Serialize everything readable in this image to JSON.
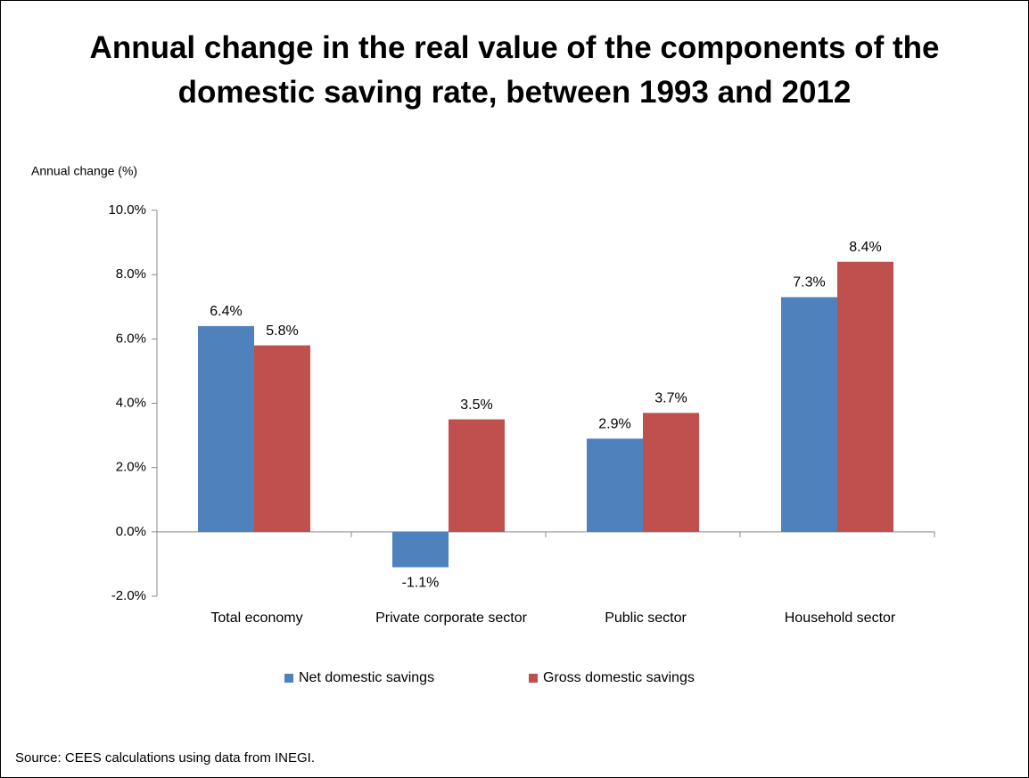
{
  "chart_data": {
    "type": "bar",
    "title": "Annual change in the real value of the components of the domestic saving rate, between 1993 and 2012",
    "y_label": "Annual change (%)",
    "categories": [
      "Total economy",
      "Private corporate sector",
      "Public sector",
      "Household sector"
    ],
    "series": [
      {
        "name": "Net domestic savings",
        "color": "#4f81bd",
        "values": [
          6.4,
          -1.1,
          2.9,
          7.3
        ],
        "value_labels": [
          "6.4%",
          "-1.1%",
          "2.9%",
          "7.3%"
        ]
      },
      {
        "name": "Gross domestic savings",
        "color": "#c0504d",
        "values": [
          5.8,
          3.5,
          3.7,
          8.4
        ],
        "value_labels": [
          "5.8%",
          "3.5%",
          "3.7%",
          "8.4%"
        ]
      }
    ],
    "ylim": [
      -2,
      10
    ],
    "yticks": [
      {
        "value": -2,
        "label": "-2.0%"
      },
      {
        "value": 0,
        "label": "0.0%"
      },
      {
        "value": 2,
        "label": "2.0%"
      },
      {
        "value": 4,
        "label": "4.0%"
      },
      {
        "value": 6,
        "label": "6.0%"
      },
      {
        "value": 8,
        "label": "8.0%"
      },
      {
        "value": 10,
        "label": "10.0%"
      }
    ],
    "grid": false,
    "legend": "bottom",
    "source": "Source: CEES calculations using data from INEGI."
  }
}
